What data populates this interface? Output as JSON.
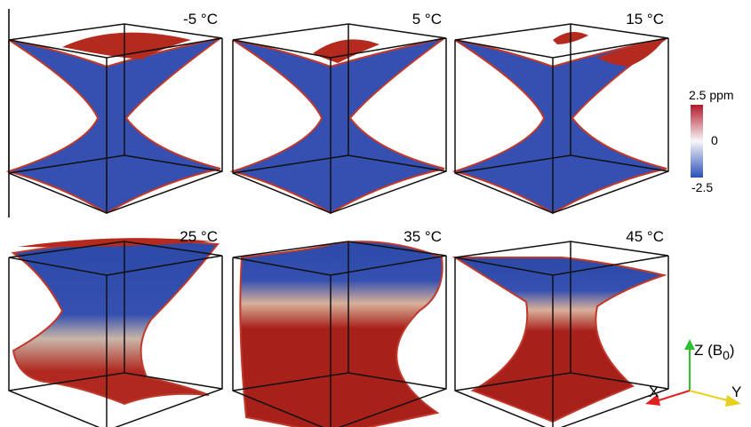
{
  "panels": [
    {
      "label": "-5 °C"
    },
    {
      "label": "5 °C"
    },
    {
      "label": "15 °C"
    },
    {
      "label": "25 °C"
    },
    {
      "label": "35 °C"
    },
    {
      "label": "45 °C"
    }
  ],
  "colorbar": {
    "max": "2.5 ppm",
    "mid": "0",
    "min": "-2.5"
  },
  "axes": {
    "z": "Z (B",
    "z_subscript": "0",
    "z_close": ")",
    "x": "X",
    "y": "Y"
  }
}
